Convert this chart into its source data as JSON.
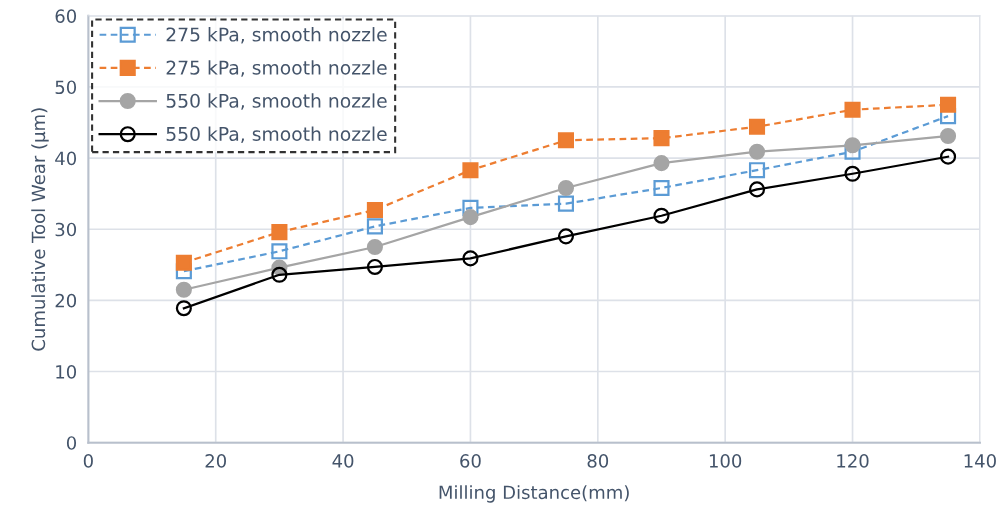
{
  "chart_data": {
    "type": "line",
    "xlabel": "Milling Distance(mm)",
    "ylabel": "Cumulative Tool Wear (µm)",
    "x": [
      15,
      30,
      45,
      60,
      75,
      90,
      105,
      120,
      135
    ],
    "xlim": [
      0,
      140
    ],
    "xticks": [
      0,
      20,
      40,
      60,
      80,
      100,
      120,
      140
    ],
    "ylim": [
      0,
      60
    ],
    "yticks": [
      0,
      10,
      20,
      30,
      40,
      50,
      60
    ],
    "grid": true,
    "legend": "top left",
    "series": [
      {
        "name": "275 kPa, smooth nozzle",
        "color": "#5b9bd5",
        "marker": "square",
        "line_style": "dashed",
        "values": [
          24.1,
          26.9,
          30.4,
          33.0,
          33.6,
          35.8,
          38.3,
          40.9,
          45.9
        ]
      },
      {
        "name": "275 kPa, smooth nozzle",
        "color": "#ed7d31",
        "marker": "square",
        "line_style": "dashed",
        "values": [
          25.3,
          29.6,
          32.7,
          38.3,
          42.5,
          42.8,
          44.4,
          46.8,
          47.5
        ]
      },
      {
        "name": "550 kPa, smooth nozzle",
        "color": "#a5a5a5",
        "marker": "circle",
        "line_style": "solid",
        "values": [
          21.5,
          24.6,
          27.5,
          31.7,
          35.8,
          39.3,
          40.9,
          41.8,
          43.1
        ]
      },
      {
        "name": "550 kPa, smooth nozzle",
        "color": "#000000",
        "marker": "circle",
        "line_style": "solid",
        "values": [
          18.9,
          23.6,
          24.7,
          25.9,
          29.0,
          31.9,
          35.6,
          37.8,
          40.2
        ]
      }
    ]
  }
}
